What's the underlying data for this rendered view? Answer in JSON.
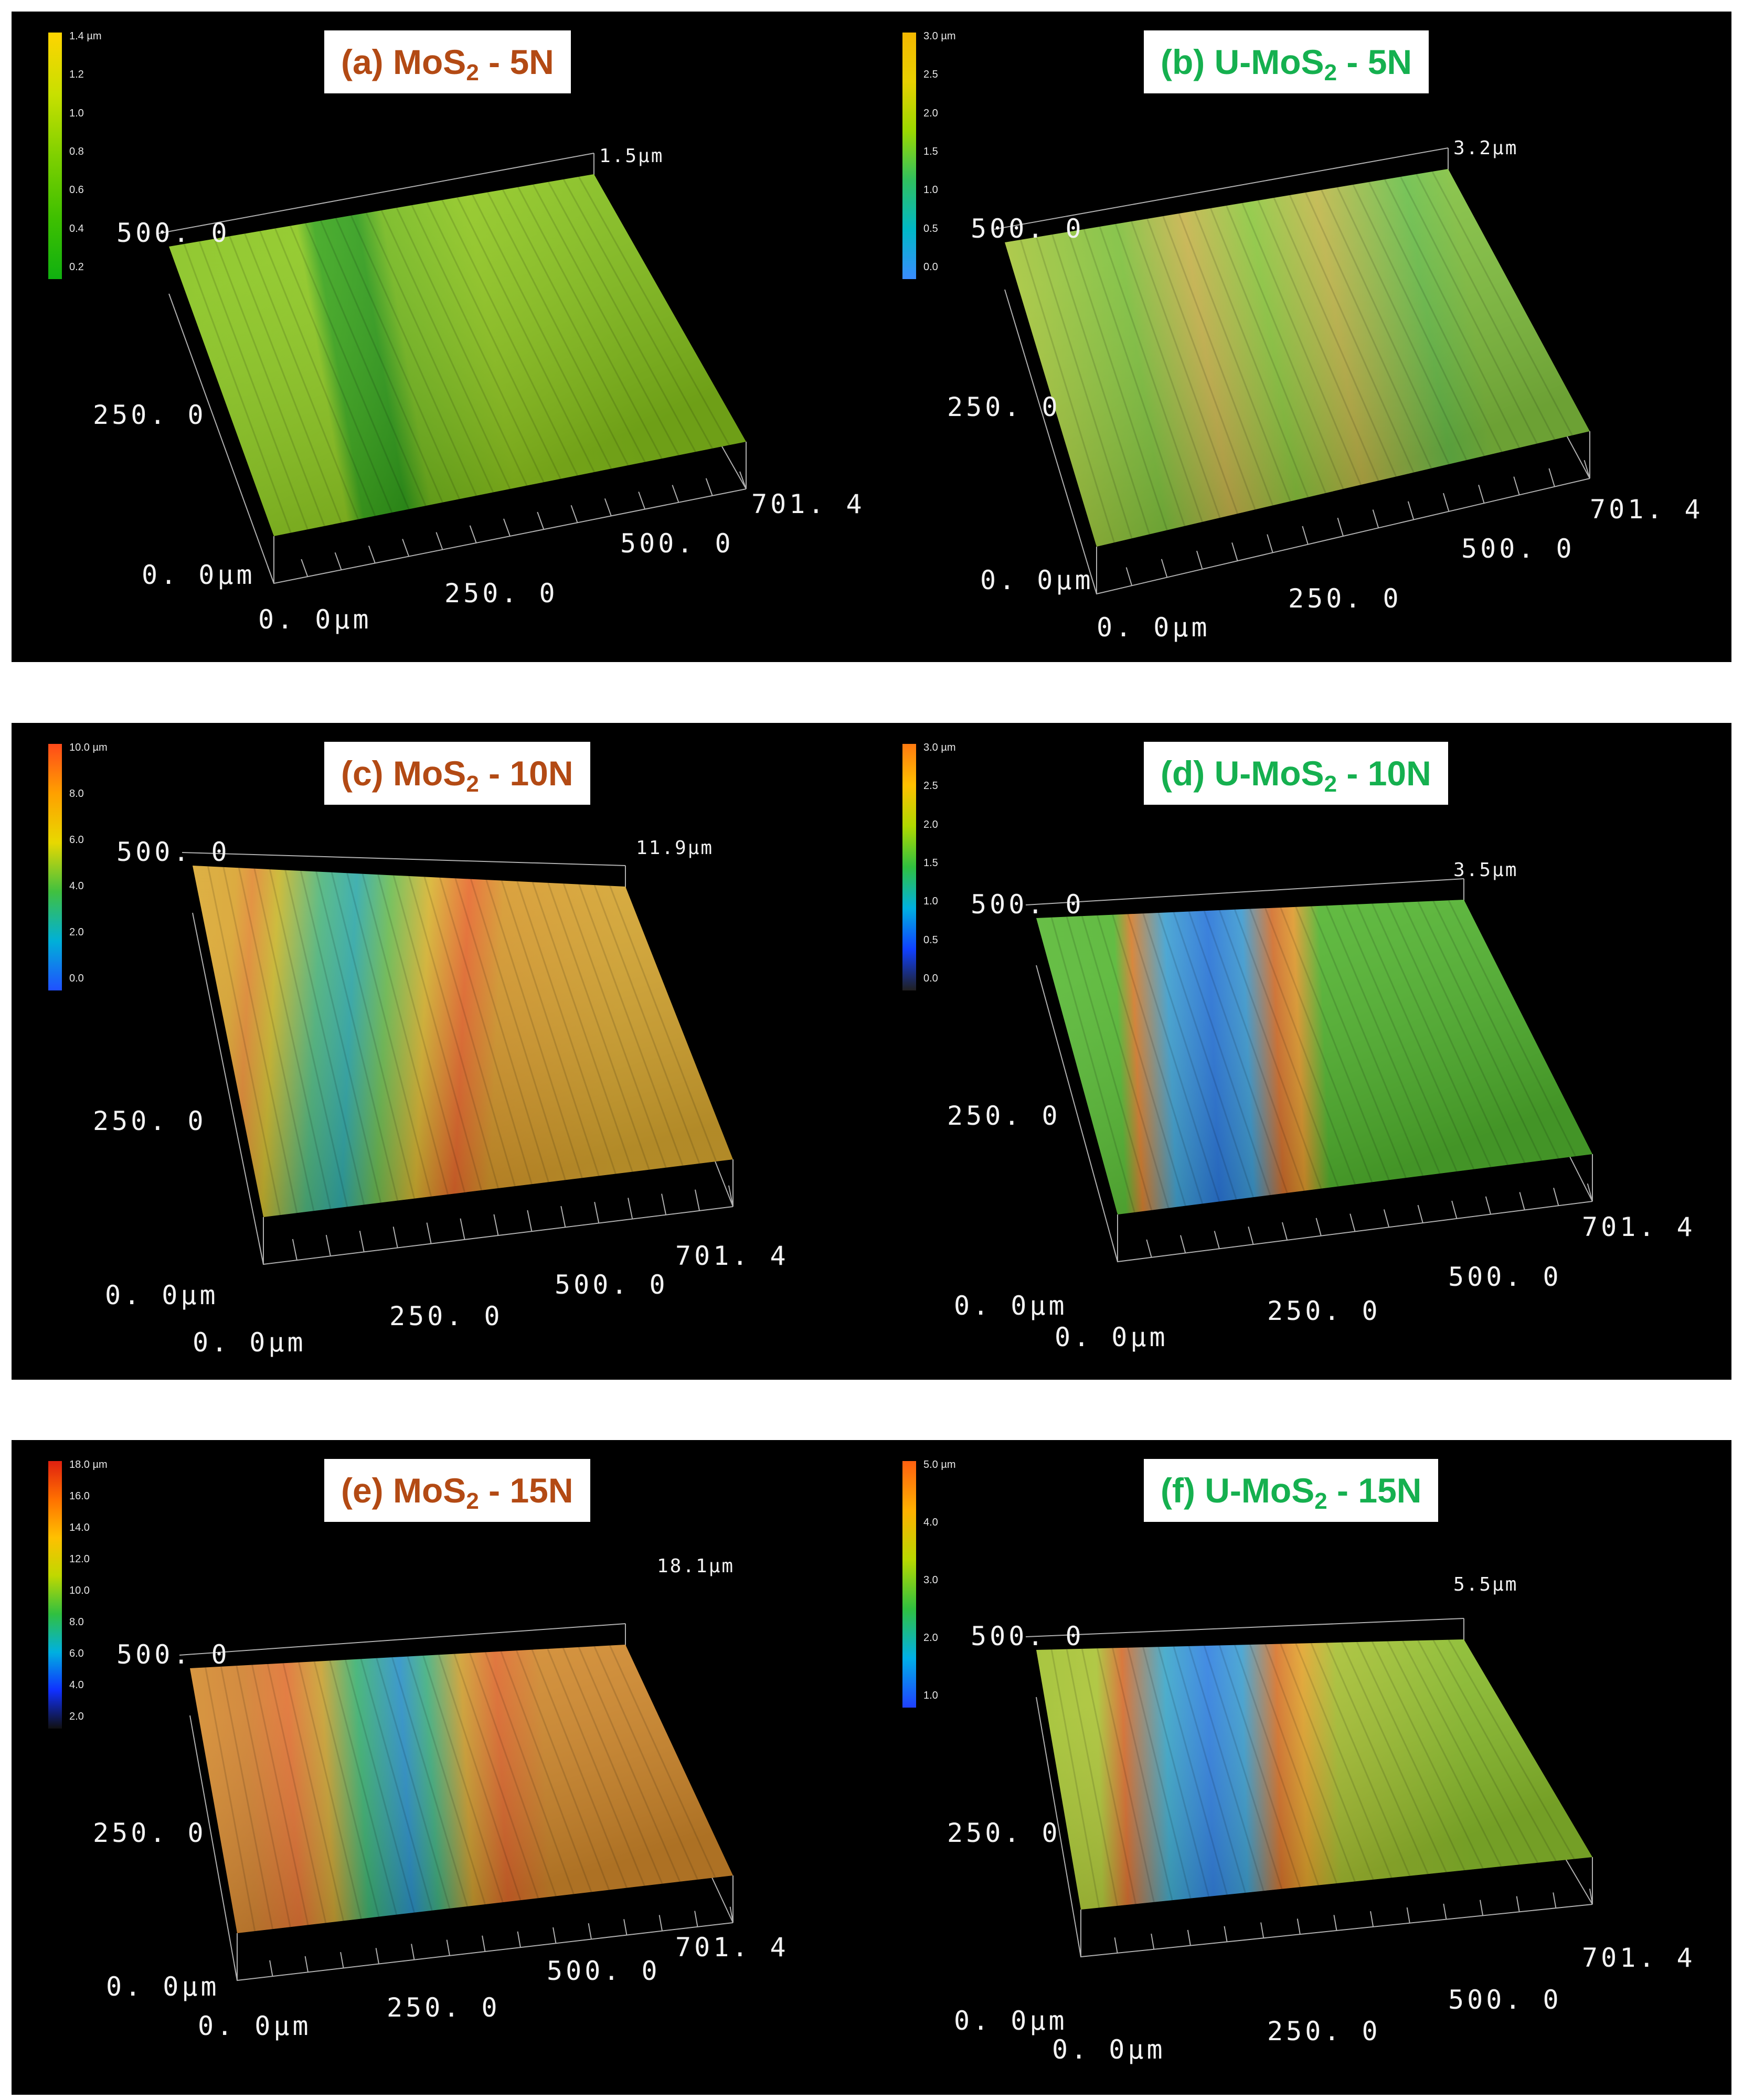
{
  "colors": {
    "brown_title": "#b34a14",
    "green_title": "#15b04f"
  },
  "panels": [
    {
      "id": "a",
      "title_prefix": "(a) MoS",
      "title_sub": "2",
      "title_suffix": " - 5N",
      "title_color": "brown",
      "z_max_label": "1.5µm",
      "scale_ticks": [
        "1.4 µm",
        "1.2",
        "1.0",
        "0.8",
        "0.6",
        "0.4",
        "0.2"
      ],
      "axis_labels": {
        "y_mid": "250. 0",
        "y_top": "500. 0",
        "origin_y": "0. 0µm",
        "origin_x": "0. 0µm",
        "x_mid": "250. 0",
        "x_500": "500. 0",
        "x_end": "701. 4"
      }
    },
    {
      "id": "b",
      "title_prefix": "(b) U-MoS",
      "title_sub": "2",
      "title_suffix": " - 5N",
      "title_color": "green",
      "z_max_label": "3.2µm",
      "scale_ticks": [
        "3.0 µm",
        "2.5",
        "2.0",
        "1.5",
        "1.0",
        "0.5",
        "0.0"
      ],
      "axis_labels": {
        "y_mid": "250. 0",
        "y_top": "500. 0",
        "origin_y": "0. 0µm",
        "origin_x": "0. 0µm",
        "x_mid": "250. 0",
        "x_500": "500. 0",
        "x_end": "701. 4"
      }
    },
    {
      "id": "c",
      "title_prefix": "(c) MoS",
      "title_sub": "2",
      "title_suffix": " - 10N",
      "title_color": "brown",
      "z_max_label": "11.9µm",
      "scale_ticks": [
        "10.0 µm",
        "8.0",
        "6.0",
        "4.0",
        "2.0",
        "0.0"
      ],
      "axis_labels": {
        "y_mid": "250. 0",
        "y_top": "500. 0",
        "origin_y": "0. 0µm",
        "origin_x": "0. 0µm",
        "x_mid": "250. 0",
        "x_500": "500. 0",
        "x_end": "701. 4"
      }
    },
    {
      "id": "d",
      "title_prefix": "(d) U-MoS",
      "title_sub": "2",
      "title_suffix": " - 10N",
      "title_color": "green",
      "z_max_label": "3.5µm",
      "scale_ticks": [
        "3.0 µm",
        "2.5",
        "2.0",
        "1.5",
        "1.0",
        "0.5",
        "0.0"
      ],
      "axis_labels": {
        "y_mid": "250. 0",
        "y_top": "500. 0",
        "origin_y": "0. 0µm",
        "origin_x": "0. 0µm",
        "x_mid": "250. 0",
        "x_500": "500. 0",
        "x_end": "701. 4"
      }
    },
    {
      "id": "e",
      "title_prefix": "(e) MoS",
      "title_sub": "2",
      "title_suffix": " - 15N",
      "title_color": "brown",
      "z_max_label": "18.1µm",
      "scale_ticks": [
        "18.0 µm",
        "16.0",
        "14.0",
        "12.0",
        "10.0",
        "8.0",
        "6.0",
        "4.0",
        "2.0"
      ],
      "axis_labels": {
        "y_mid": "250. 0",
        "y_top": "500. 0",
        "origin_y": "0. 0µm",
        "origin_x": "0. 0µm",
        "x_mid": "250. 0",
        "x_500": "500. 0",
        "x_end": "701. 4"
      }
    },
    {
      "id": "f",
      "title_prefix": "(f) U-MoS",
      "title_sub": "2",
      "title_suffix": " - 15N",
      "title_color": "green",
      "z_max_label": "5.5µm",
      "scale_ticks": [
        "5.0 µm",
        "4.0",
        "3.0",
        "2.0",
        "1.0"
      ],
      "axis_labels": {
        "y_mid": "250. 0",
        "y_top": "500. 0",
        "origin_y": "0. 0µm",
        "origin_x": "0. 0µm",
        "x_mid": "250. 0",
        "x_500": "500. 0",
        "x_end": "701. 4"
      }
    }
  ]
}
